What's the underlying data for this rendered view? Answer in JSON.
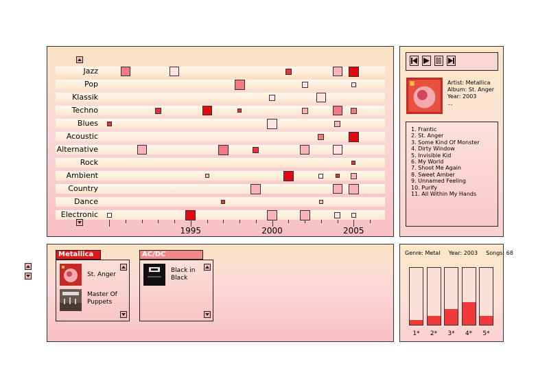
{
  "timeline": {
    "genres": [
      "Jazz",
      "Pop",
      "Klassik",
      "Techno",
      "Blues",
      "Acoustic",
      "Alternative",
      "Rock",
      "Ambient",
      "Country",
      "Dance",
      "Electronic"
    ],
    "year_labels": [
      "1995",
      "2000",
      "2005"
    ],
    "year_range": [
      1990,
      2006
    ],
    "cells": [
      {
        "genre": 0,
        "year": 1991,
        "level": 3,
        "size": 14
      },
      {
        "genre": 0,
        "year": 1994,
        "level": 1,
        "size": 14
      },
      {
        "genre": 0,
        "year": 2001,
        "level": 4,
        "size": 9
      },
      {
        "genre": 0,
        "year": 2004,
        "level": 2,
        "size": 14
      },
      {
        "genre": 0,
        "year": 2005,
        "level": 5,
        "size": 15
      },
      {
        "genre": 1,
        "year": 1998,
        "level": 3,
        "size": 15
      },
      {
        "genre": 1,
        "year": 2002,
        "level": 1,
        "size": 9
      },
      {
        "genre": 1,
        "year": 2005,
        "level": 1,
        "size": 7
      },
      {
        "genre": 2,
        "year": 2000,
        "level": 1,
        "size": 9
      },
      {
        "genre": 2,
        "year": 2003,
        "level": 1,
        "size": 14
      },
      {
        "genre": 3,
        "year": 1993,
        "level": 4,
        "size": 9
      },
      {
        "genre": 3,
        "year": 1996,
        "level": 5,
        "size": 14
      },
      {
        "genre": 3,
        "year": 1998,
        "level": 4,
        "size": 6
      },
      {
        "genre": 3,
        "year": 2002,
        "level": 2,
        "size": 9
      },
      {
        "genre": 3,
        "year": 2004,
        "level": 3,
        "size": 14
      },
      {
        "genre": 3,
        "year": 2005,
        "level": 3,
        "size": 9
      },
      {
        "genre": 4,
        "year": 1990,
        "level": 4,
        "size": 7
      },
      {
        "genre": 4,
        "year": 2000,
        "level": 1,
        "size": 15
      },
      {
        "genre": 4,
        "year": 2004,
        "level": 2,
        "size": 9
      },
      {
        "genre": 5,
        "year": 2003,
        "level": 3,
        "size": 9
      },
      {
        "genre": 5,
        "year": 2005,
        "level": 5,
        "size": 15
      },
      {
        "genre": 6,
        "year": 1992,
        "level": 2,
        "size": 14
      },
      {
        "genre": 6,
        "year": 1997,
        "level": 3,
        "size": 15
      },
      {
        "genre": 6,
        "year": 1999,
        "level": 4,
        "size": 9
      },
      {
        "genre": 6,
        "year": 2002,
        "level": 2,
        "size": 14
      },
      {
        "genre": 6,
        "year": 2004,
        "level": 1,
        "size": 14
      },
      {
        "genre": 7,
        "year": 2005,
        "level": 4,
        "size": 6
      },
      {
        "genre": 8,
        "year": 1996,
        "level": 2,
        "size": 6
      },
      {
        "genre": 8,
        "year": 2001,
        "level": 5,
        "size": 15
      },
      {
        "genre": 8,
        "year": 2003,
        "level": 0,
        "size": 7
      },
      {
        "genre": 8,
        "year": 2004,
        "level": 4,
        "size": 6
      },
      {
        "genre": 8,
        "year": 2005,
        "level": 2,
        "size": 9
      },
      {
        "genre": 9,
        "year": 1999,
        "level": 2,
        "size": 15
      },
      {
        "genre": 9,
        "year": 2004,
        "level": 2,
        "size": 14
      },
      {
        "genre": 9,
        "year": 2005,
        "level": 2,
        "size": 15
      },
      {
        "genre": 10,
        "year": 1997,
        "level": 4,
        "size": 6
      },
      {
        "genre": 10,
        "year": 2003,
        "level": 2,
        "size": 6
      },
      {
        "genre": 11,
        "year": 1990,
        "level": 0,
        "size": 7
      },
      {
        "genre": 11,
        "year": 1995,
        "level": 5,
        "size": 15
      },
      {
        "genre": 11,
        "year": 2000,
        "level": 2,
        "size": 15
      },
      {
        "genre": 11,
        "year": 2002,
        "level": 2,
        "size": 15
      },
      {
        "genre": 11,
        "year": 2004,
        "level": 1,
        "size": 9
      },
      {
        "genre": 11,
        "year": 2005,
        "level": 1,
        "size": 7
      }
    ]
  },
  "colors": {
    "level_0": "#ffffff",
    "level_1": "#fde2e6",
    "level_2": "#f8b2ba",
    "level_3": "#f27884",
    "level_4": "#ea3038",
    "level_5": "#e00a10",
    "accent": "#e01818"
  },
  "player": {
    "controls": [
      "skip-back-icon",
      "play-icon",
      "pause-icon",
      "skip-forward-icon"
    ],
    "artist_line": "Artist: Metallica",
    "album_line": "Album: St. Anger",
    "year_line": "Year: 2003",
    "more_line": "...",
    "tracks": [
      "1. Frantic",
      "2. St. Anger",
      "3. Some Kind Of Monster",
      "4. Dirty Window",
      "5. Invisible Kid",
      "6. My World",
      "7. Shoot Me Again",
      "8. Sweet Amber",
      "9. Unnamed Feeling",
      "10. Purify",
      "11. All Within My Hands"
    ]
  },
  "artists": [
    {
      "name": "Metallica",
      "albums": [
        "St. Anger",
        "Master Of Puppets"
      ]
    },
    {
      "name": "AC/DC",
      "albums": [
        "Black in Black"
      ]
    }
  ],
  "stats": {
    "genre_line": "Genre: Metal",
    "year_line": "Year: 2003",
    "songs_line": "Songs: 68",
    "ratings": [
      {
        "label": "1*",
        "fraction": 0.08
      },
      {
        "label": "2*",
        "fraction": 0.16
      },
      {
        "label": "3*",
        "fraction": 0.28
      },
      {
        "label": "4*",
        "fraction": 0.4
      },
      {
        "label": "5*",
        "fraction": 0.16
      }
    ]
  }
}
